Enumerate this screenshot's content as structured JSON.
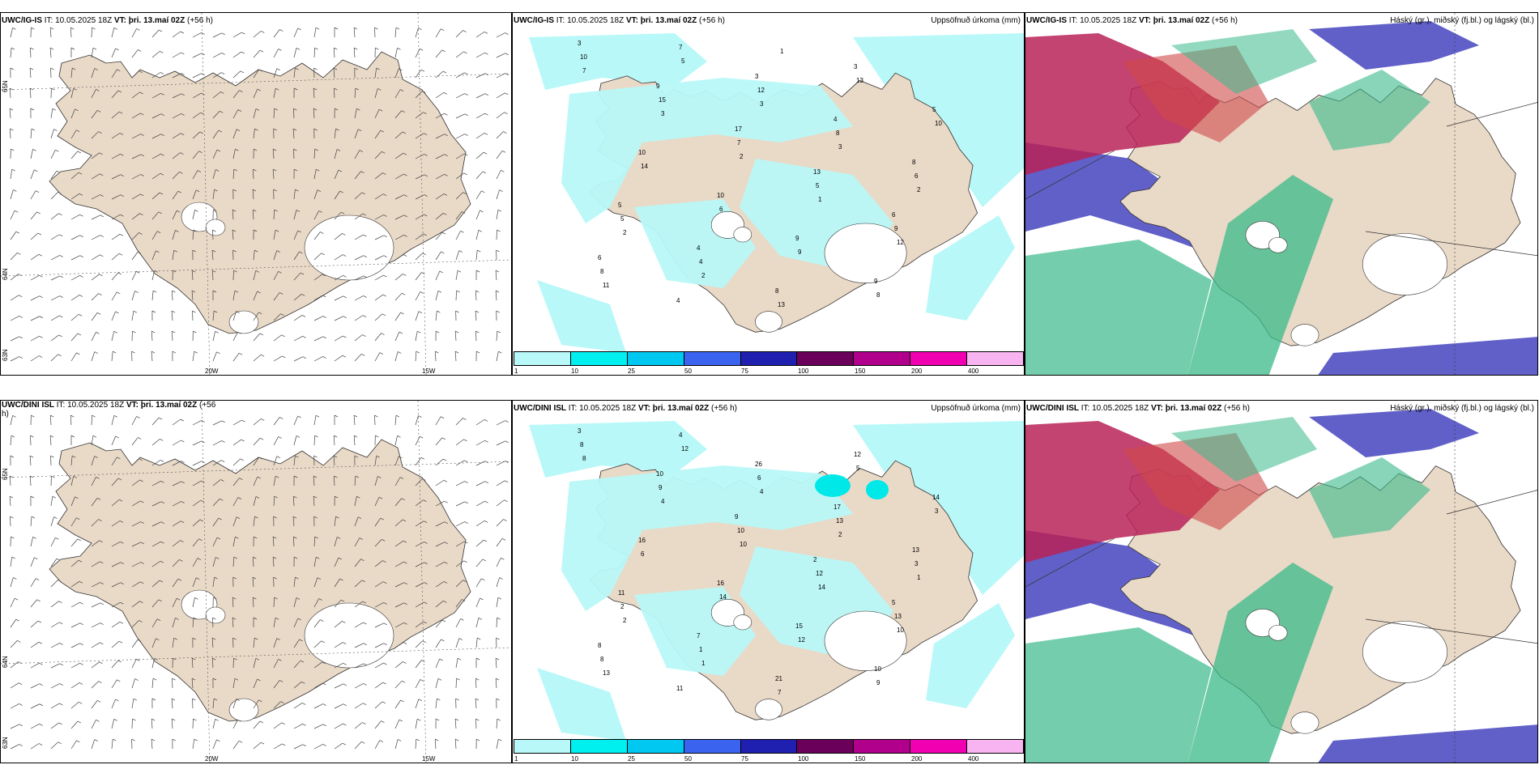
{
  "rows": [
    {
      "wind": {
        "model": "UWC/IG-IS",
        "it_label": "IT:",
        "it": "10.05.2025 18Z",
        "vt_label": "VT:",
        "vt": "þri. 13.maí 02Z",
        "offset": "(+56 h)"
      },
      "precip": {
        "model": "UWC/IG-IS",
        "it_label": "IT:",
        "it": "10.05.2025 18Z",
        "vt_label": "VT:",
        "vt": "þri. 13.maí 02Z",
        "offset": "(+56 h)",
        "title": "Uppsöfnuð úrkoma (mm)"
      },
      "cloud": {
        "model": "UWC/IG-IS",
        "it_label": "IT:",
        "it": "10.05.2025 18Z",
        "vt_label": "VT:",
        "vt": "þri. 13.maí 02Z",
        "offset": "(+56 h)",
        "title": "Háský (gr.), miðský (fj.bl.) og lágský (bl.)"
      }
    },
    {
      "wind": {
        "model": "UWC/DINI ISL",
        "it_label": "IT:",
        "it": "10.05.2025 18Z",
        "vt_label": "VT:",
        "vt": "þri. 13.maí 02Z",
        "offset": "(+56 h)"
      },
      "precip": {
        "model": "UWC/DINI ISL",
        "it_label": "IT:",
        "it": "10.05.2025 18Z",
        "vt_label": "VT:",
        "vt": "þri. 13.maí 02Z",
        "offset": "(+56 h)",
        "title": "Uppsöfnuð úrkoma (mm)"
      },
      "cloud": {
        "model": "UWC/DINI ISL",
        "it_label": "IT:",
        "it": "10.05.2025 18Z",
        "vt_label": "VT:",
        "vt": "þri. 13.maí 02Z",
        "offset": "(+56 h)",
        "title": "Háský (gr.), miðský (fj.bl.) og lágský (bl.)"
      }
    }
  ],
  "axes": {
    "lat_top": "65N",
    "lat_mid": "64N",
    "lat_bot": "63N",
    "lon_left": "20W",
    "lon_right": "15W"
  },
  "colorbar": {
    "labels": [
      "1",
      "10",
      "25",
      "50",
      "75",
      "100",
      "150",
      "200",
      "400"
    ],
    "colors": [
      "#b8f8f8",
      "#00f0f0",
      "#00c8f0",
      "#3a64f0",
      "#2020b0",
      "#6a005a",
      "#b0008c",
      "#f000b0",
      "#f8b4f0"
    ]
  },
  "precip_numbers_top": [
    "3",
    "9",
    "17",
    "13",
    "6",
    "6",
    "4",
    "3",
    "4",
    "8",
    "5",
    "4",
    "8",
    "3",
    "5",
    "10",
    "10",
    "9",
    "9",
    "10",
    "15",
    "7",
    "5",
    "9",
    "8",
    "7",
    "12",
    "8",
    "6",
    "5",
    "4",
    "13",
    "13",
    "10",
    "14",
    "6",
    "9",
    "8",
    "7",
    "3",
    "2",
    "1",
    "12",
    "11",
    "5",
    "3",
    "3",
    "2",
    "2",
    "2",
    "1"
  ],
  "precip_numbers_bot": [
    "3",
    "10",
    "9",
    "2",
    "5",
    "8",
    "11",
    "26",
    "17",
    "13",
    "11",
    "7",
    "21",
    "12",
    "14",
    "16",
    "16",
    "15",
    "10",
    "8",
    "9",
    "10",
    "12",
    "13",
    "8",
    "4",
    "6",
    "13",
    "3",
    "2",
    "1",
    "7",
    "5",
    "3",
    "6",
    "14",
    "12",
    "9",
    "8",
    "4",
    "10",
    "14",
    "10",
    "13",
    "12",
    "4",
    "2",
    "1",
    "2",
    "1"
  ],
  "colors": {
    "land": "#e9d9c7",
    "precip_light": "#b8f8f8",
    "cloud_high": "#39b98a",
    "cloud_mid": "#b82258",
    "cloud_low": "#4f4fc2"
  }
}
